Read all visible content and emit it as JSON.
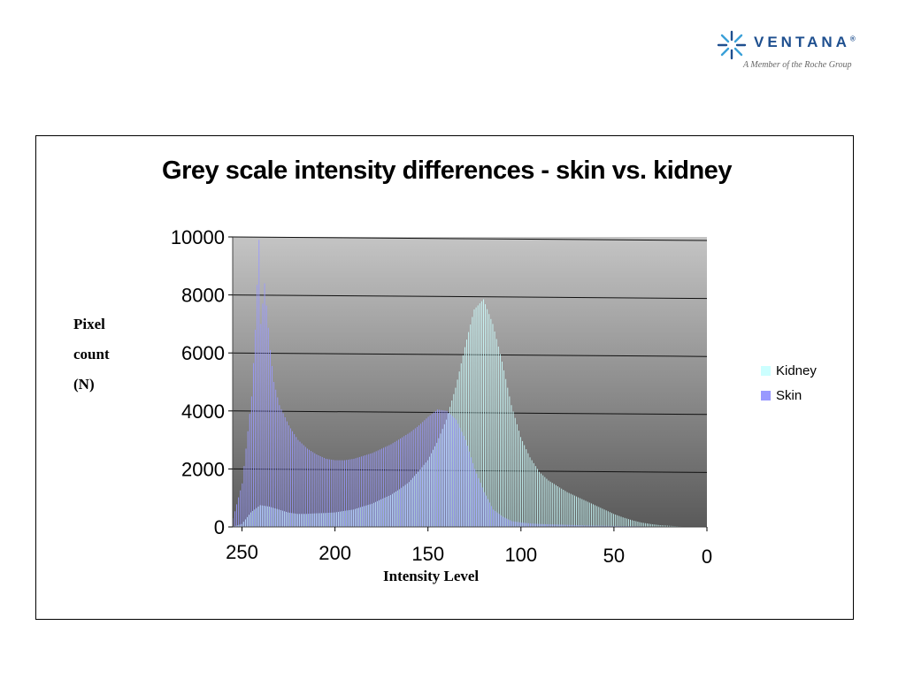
{
  "logo": {
    "name": "VENTANA",
    "mark": "®",
    "tagline": "A Member of the Roche Group"
  },
  "chart_data": {
    "type": "bar",
    "title": "Grey scale intensity differences - skin vs. kidney",
    "ylabel_lines": [
      "Pixel",
      "count",
      "(N)"
    ],
    "xlabel": "Intensity Level",
    "x_range": [
      255,
      0
    ],
    "x_reversed": true,
    "x_ticks": [
      250,
      200,
      150,
      100,
      50,
      0
    ],
    "ylim": [
      0,
      10000
    ],
    "y_ticks": [
      0,
      2000,
      4000,
      6000,
      8000,
      10000
    ],
    "grid": true,
    "legend_position": "right",
    "series": [
      {
        "name": "Kidney",
        "color": "#ccffff",
        "x": [
          255,
          250,
          245,
          240,
          235,
          230,
          225,
          220,
          215,
          210,
          205,
          200,
          195,
          190,
          185,
          180,
          175,
          170,
          165,
          160,
          155,
          150,
          145,
          140,
          135,
          130,
          125,
          120,
          115,
          110,
          105,
          100,
          95,
          90,
          85,
          80,
          75,
          70,
          65,
          60,
          55,
          50,
          45,
          40,
          35,
          30,
          25,
          20,
          15,
          10,
          5,
          0
        ],
        "values": [
          0,
          100,
          500,
          750,
          700,
          600,
          500,
          450,
          450,
          470,
          480,
          500,
          550,
          600,
          700,
          800,
          950,
          1100,
          1300,
          1550,
          1900,
          2300,
          2900,
          3700,
          4800,
          6200,
          7500,
          7850,
          7000,
          5700,
          4200,
          3100,
          2400,
          1900,
          1600,
          1400,
          1200,
          1050,
          900,
          750,
          600,
          450,
          330,
          230,
          150,
          100,
          60,
          40,
          20,
          10,
          5,
          0
        ]
      },
      {
        "name": "Skin",
        "color": "#9999ff",
        "x": [
          255,
          250,
          245,
          243,
          241,
          240,
          238,
          235,
          233,
          230,
          225,
          220,
          215,
          210,
          205,
          200,
          195,
          190,
          185,
          180,
          175,
          170,
          165,
          160,
          155,
          150,
          145,
          140,
          135,
          130,
          125,
          120,
          115,
          110,
          105,
          100,
          95,
          90,
          85,
          80,
          75,
          70,
          65,
          60,
          55,
          50,
          45,
          40,
          35,
          30,
          25,
          20,
          15,
          10,
          5,
          0
        ],
        "values": [
          300,
          1500,
          4500,
          6800,
          9900,
          7000,
          8400,
          6100,
          5000,
          4200,
          3500,
          3000,
          2700,
          2500,
          2350,
          2300,
          2300,
          2350,
          2450,
          2550,
          2700,
          2850,
          3050,
          3250,
          3500,
          3800,
          4050,
          4000,
          3700,
          3000,
          2000,
          1200,
          600,
          350,
          200,
          150,
          120,
          100,
          90,
          80,
          70,
          60,
          50,
          45,
          40,
          35,
          30,
          25,
          20,
          15,
          10,
          8,
          5,
          3,
          2,
          0
        ]
      }
    ]
  }
}
